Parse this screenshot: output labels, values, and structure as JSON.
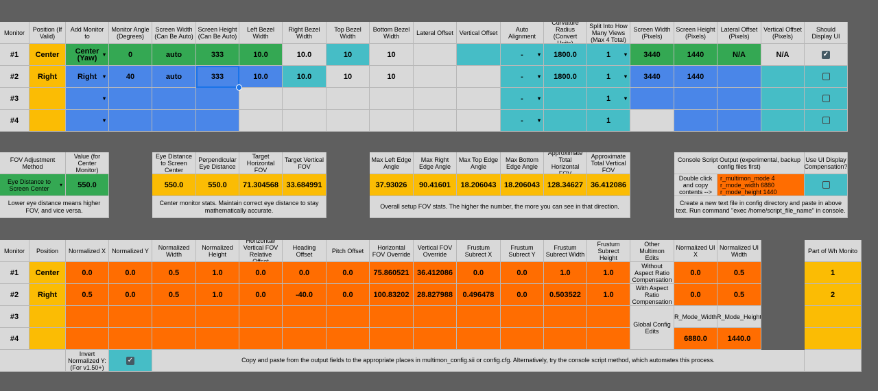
{
  "t1": {
    "headers": [
      "Monitor",
      "Position (If Valid)",
      "Add Monitor to",
      "Monitor Angle (Degrees)",
      "Screen Width (Can Be Auto)",
      "Screen Height (Can Be Auto)",
      "Left Bezel Width",
      "Right Bezel Width",
      "Top Bezel Width",
      "Bottom Bezel Width",
      "Lateral Offset",
      "Vertical Offset",
      "Auto Alignment",
      "Curvature Radius (Convert Units)",
      "Split Into How Many Views (Max 4 Total)",
      "Screen Width (Pixels)",
      "Screen Height (Pixels)",
      "Lateral Offset (Pixels)",
      "Vertical Offset (Pixels)",
      "Should Display UI"
    ],
    "rows": [
      [
        "#1",
        "Center",
        "Center (Yaw)",
        "0",
        "auto",
        "333",
        "10.0",
        "10.0",
        "10",
        "10",
        "",
        "",
        "-",
        "1800.0",
        "1",
        "3440",
        "1440",
        "N/A",
        "N/A",
        ""
      ],
      [
        "#2",
        "Right",
        "Right",
        "40",
        "auto",
        "333",
        "10.0",
        "10.0",
        "10",
        "10",
        "",
        "",
        "-",
        "1800.0",
        "1",
        "3440",
        "1440",
        "",
        "",
        ""
      ],
      [
        "#3",
        "",
        "",
        "",
        "",
        "",
        "",
        "",
        "",
        "",
        "",
        "",
        "-",
        "",
        "1",
        "",
        "",
        "",
        "",
        ""
      ],
      [
        "#4",
        "",
        "",
        "",
        "",
        "",
        "",
        "",
        "",
        "",
        "",
        "",
        "-",
        "",
        "1",
        "",
        "",
        "",
        "",
        ""
      ]
    ],
    "checkboxes": [
      true,
      false,
      false,
      false
    ]
  },
  "t2": {
    "fov_headers": [
      "FOV Adjustment Method",
      "Value (for Center Monitor)"
    ],
    "fov_values": [
      "Eye Distance to Screen Center",
      "550.0"
    ],
    "fov_note": "Lower eye distance means higher FOV, and vice versa.",
    "center_headers": [
      "Eye Distance to Screen Center",
      "Perpendicular Eye Distance",
      "Target Horizontal FOV",
      "Target Vertical FOV"
    ],
    "center_values": [
      "550.0",
      "550.0",
      "71.304568",
      "33.684991"
    ],
    "center_note": "Center monitor stats. Maintain correct eye distance to stay mathematically accurate.",
    "overall_headers": [
      "Max Left Edge Angle",
      "Max Right Edge Angle",
      "Max Top Edge Angle",
      "Max Bottom Edge Angle",
      "Approximate Total Horizontal FOV",
      "Approximate Total Vertical FOV"
    ],
    "overall_values": [
      "37.93026",
      "90.41601",
      "18.206043",
      "18.206043",
      "128.34627",
      "36.412086"
    ],
    "overall_note": "Overall setup FOV stats. The higher the number, the more you can see in that direction.",
    "console_header": "Console Script Output (experimental, backup config files first)",
    "console_label": "Double click and copy contents -->",
    "console_lines": [
      "r_multimon_mode 4",
      "r_mode_width 6880",
      "r_mode_height 1440"
    ],
    "console_note": "Create a new text file in config directory and paste in above text. Run command \"exec /home/script_file_name\" in console.",
    "ui_comp_header": "Use UI Display Compensation?"
  },
  "t3": {
    "headers": [
      "Monitor",
      "Position",
      "Normalized X",
      "Normalized Y",
      "Normalized Width",
      "Normalized Height",
      "Horizontal/ Vertical FOV Relative Offset",
      "Heading Offset",
      "Pitch Offset",
      "Horizontal FOV Override",
      "Vertical FOV Override",
      "Frustum Subrect X",
      "Frustum Subrect Y",
      "Frustum Subrect Width",
      "Frustum Subrect Height"
    ],
    "rows": [
      [
        "#1",
        "Center",
        "0.0",
        "0.0",
        "0.5",
        "1.0",
        "0.0",
        "0.0",
        "0.0",
        "75.860521",
        "36.412086",
        "0.0",
        "0.0",
        "1.0",
        "1.0"
      ],
      [
        "#2",
        "Right",
        "0.5",
        "0.0",
        "0.5",
        "1.0",
        "0.0",
        "-40.0",
        "0.0",
        "100.83202",
        "28.827988",
        "0.496478",
        "0.0",
        "0.503522",
        "1.0"
      ],
      [
        "#3",
        "",
        "",
        "",
        "",
        "",
        "",
        "",
        "",
        "",
        "",
        "",
        "",
        "",
        ""
      ],
      [
        "#4",
        "",
        "",
        "",
        "",
        "",
        "",
        "",
        "",
        "",
        "",
        "",
        "",
        "",
        ""
      ]
    ],
    "other_edits": "Other Multimon Edits",
    "ui_headers": [
      "Normalized UI X",
      "Normalized UI Width"
    ],
    "without_label": "Without Aspect Ratio Compensation",
    "without_values": [
      "0.0",
      "0.5"
    ],
    "with_label": "With Aspect Ratio Compensation",
    "with_values": [
      "0.0",
      "0.5"
    ],
    "global_label": "Global Config Edits",
    "global_headers": [
      "R_Mode_Width",
      "R_Mode_Height"
    ],
    "global_values": [
      "6880.0",
      "1440.0"
    ],
    "part_header": "Part of Wh Monito",
    "part_values": [
      "1",
      "2"
    ],
    "invert_label": "Invert Normalized Y: (For v1.50+)",
    "invert_checked": true,
    "bottom_note": "Copy and paste from the output fields to the appropriate places in multimon_config.sii or config.cfg. Alternatively, try the console script method, which automates this process."
  }
}
